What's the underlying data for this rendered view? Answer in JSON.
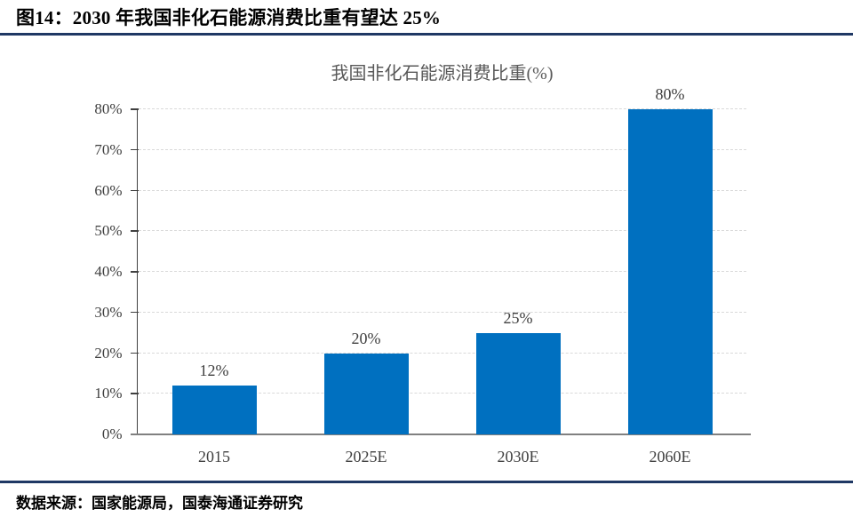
{
  "header": {
    "title": "图14：2030 年我国非化石能源消费比重有望达 25%"
  },
  "footer": {
    "source": "数据来源：国家能源局，国泰海通证券研究"
  },
  "chart_data": {
    "type": "bar",
    "title": "我国非化石能源消费比重(%)",
    "categories": [
      "2015",
      "2025E",
      "2030E",
      "2060E"
    ],
    "values": [
      12,
      20,
      25,
      80
    ],
    "data_labels": [
      "12%",
      "20%",
      "25%",
      "80%"
    ],
    "ylim": [
      0,
      80
    ],
    "ytick_step": 10,
    "ytick_labels": [
      "0%",
      "10%",
      "20%",
      "30%",
      "40%",
      "50%",
      "60%",
      "70%",
      "80%"
    ],
    "grid": "horizontal-dashed",
    "legend_position": "none",
    "bar_color": "#0070C0"
  },
  "colors": {
    "accent_rule": "#1F3864",
    "bar": "#0070C0",
    "gridline": "#D9D9D9",
    "axis_text": "#404040",
    "chart_title_gray": "#595959"
  }
}
